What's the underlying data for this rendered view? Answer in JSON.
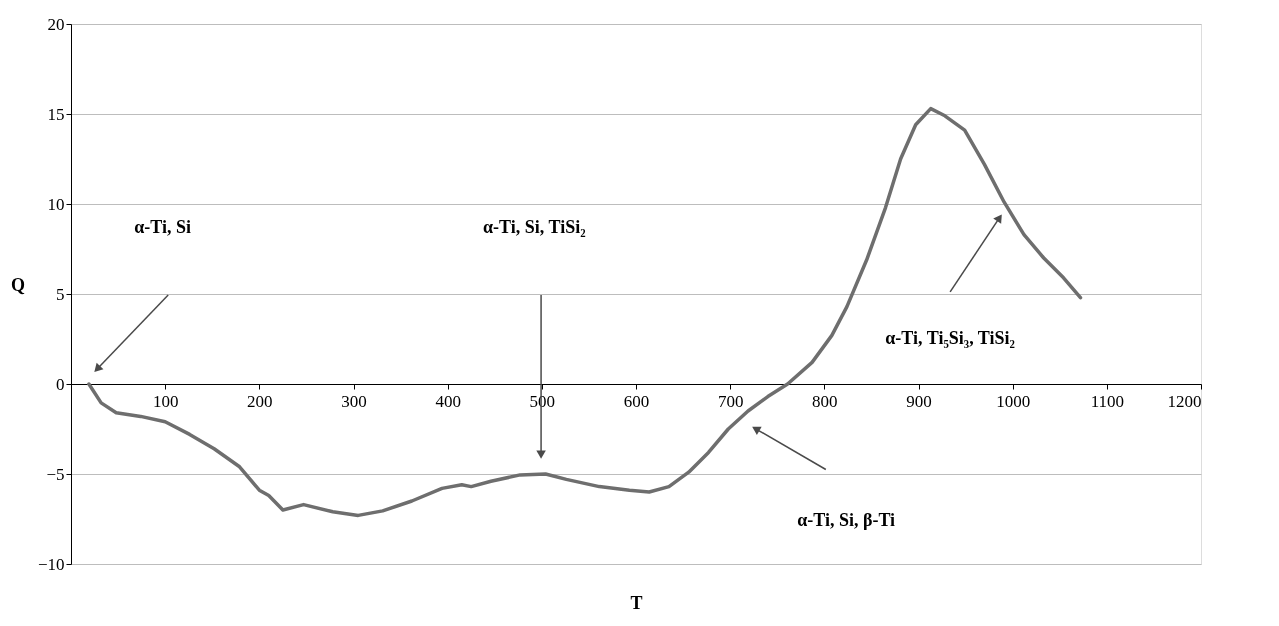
{
  "chart_data": {
    "type": "line",
    "xlabel": "T",
    "ylabel": "Q",
    "xlim": [
      0,
      1200
    ],
    "xticks": [
      100,
      200,
      300,
      400,
      500,
      600,
      700,
      800,
      900,
      1000,
      1100,
      1200
    ],
    "ylim": [
      -10,
      20
    ],
    "yticks": [
      -10,
      -5,
      0,
      5,
      10,
      15,
      20
    ],
    "grid": "y",
    "series": [
      {
        "color": "#6e6e6e",
        "x": [
          19,
          32,
          48,
          74,
          100,
          126,
          152,
          179,
          200,
          210,
          225,
          247,
          278,
          305,
          331,
          362,
          394,
          415,
          425,
          446,
          477,
          504,
          526,
          561,
          593,
          614,
          635,
          656,
          677,
          698,
          719,
          740,
          761,
          787,
          808,
          824,
          845,
          865,
          881,
          897,
          913,
          928,
          949,
          970,
          991,
          1012,
          1033,
          1054,
          1072
        ],
        "values": [
          0,
          -1.05,
          -1.6,
          -1.8,
          -2.1,
          -2.8,
          -3.6,
          -4.6,
          -5.9,
          -6.2,
          -7.0,
          -6.7,
          -7.1,
          -7.3,
          -7.05,
          -6.5,
          -5.8,
          -5.6,
          -5.7,
          -5.4,
          -5.05,
          -5.0,
          -5.3,
          -5.7,
          -5.9,
          -6.0,
          -5.7,
          -4.9,
          -3.8,
          -2.5,
          -1.5,
          -0.7,
          0,
          1.2,
          2.7,
          4.3,
          6.9,
          9.8,
          12.5,
          14.4,
          15.3,
          14.9,
          14.1,
          12.2,
          10.1,
          8.3,
          7.0,
          5.9,
          4.8
        ]
      }
    ],
    "annotations": [
      "α-Ti, Si",
      "α-Ti, Si, TiSi₂",
      "α-Ti, Ti₅Si₃, TiSi₂",
      "α-Ti, Si, β-Ti"
    ]
  }
}
